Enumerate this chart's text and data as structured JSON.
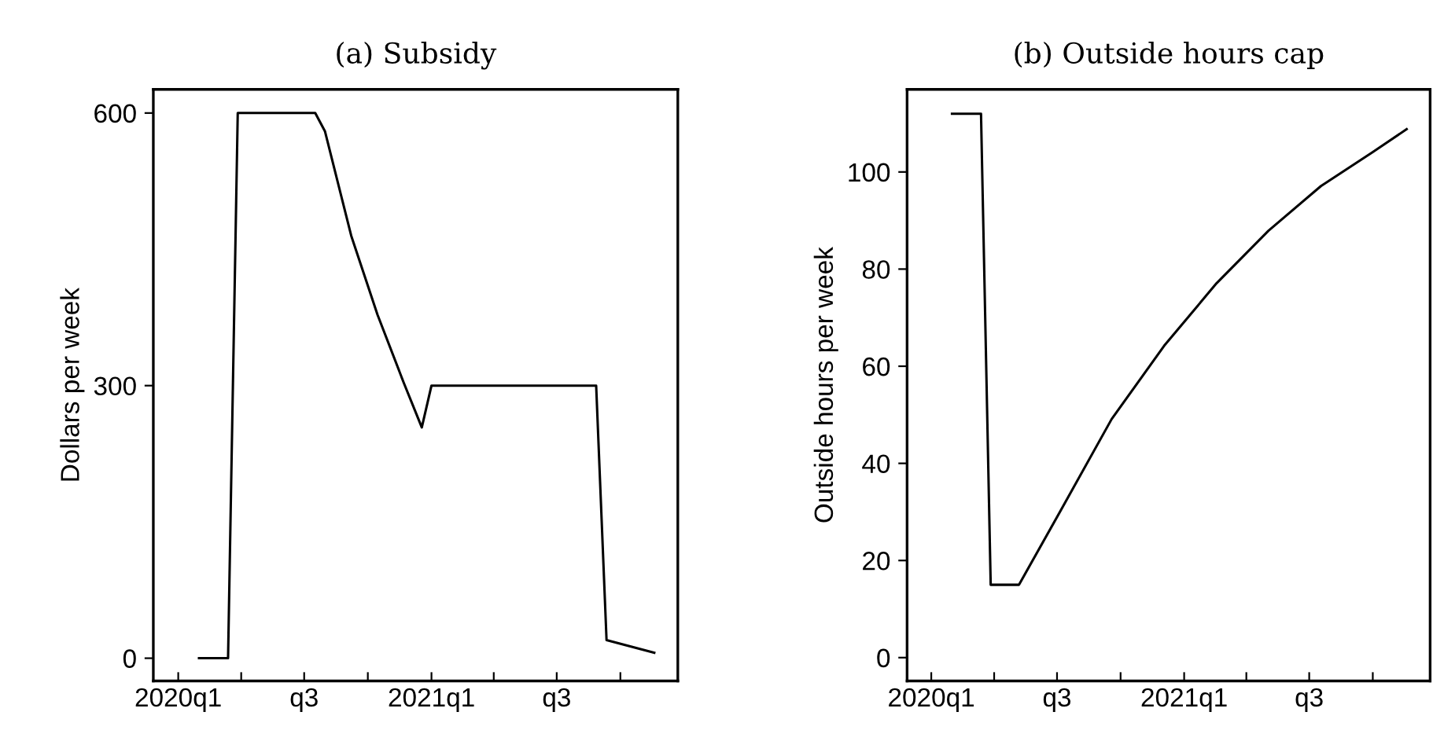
{
  "chart_data": [
    {
      "type": "line",
      "title": "(a) Subsidy",
      "ylabel": "Dollars per week",
      "xlim": [
        "2019-11-26",
        "2021-12-23"
      ],
      "ylim": [
        -25,
        626
      ],
      "xticks": [
        {
          "value": "2020-01-01",
          "label": "2020q1"
        },
        {
          "value": "2020-04-01",
          "label": null
        },
        {
          "value": "2020-07-01",
          "label": "q3"
        },
        {
          "value": "2020-10-01",
          "label": null
        },
        {
          "value": "2021-01-01",
          "label": "2021q1"
        },
        {
          "value": "2021-04-01",
          "label": null
        },
        {
          "value": "2021-07-01",
          "label": "q3"
        },
        {
          "value": "2021-10-01",
          "label": null
        }
      ],
      "yticks": [
        0,
        300,
        600
      ],
      "grid": false,
      "series": [
        {
          "color": "#000000",
          "x": [
            "2020-01-31",
            "2020-03-13",
            "2020-03-27",
            "2020-07-17",
            "2020-07-31",
            "2020-09-07",
            "2020-10-15",
            "2020-11-22",
            "2020-12-18",
            "2021-01-01",
            "2021-08-27",
            "2021-09-11",
            "2021-11-19"
          ],
          "values": [
            0,
            0,
            600,
            600,
            580,
            465,
            378,
            303,
            254,
            300,
            300,
            20,
            6
          ]
        }
      ]
    },
    {
      "type": "line",
      "title": "(b) Outside hours cap",
      "ylabel": "Outside hours per week",
      "xlim": [
        "2019-11-27",
        "2021-12-23"
      ],
      "ylim": [
        -4.8,
        117
      ],
      "xticks": [
        {
          "value": "2020-01-01",
          "label": "2020q1"
        },
        {
          "value": "2020-04-01",
          "label": null
        },
        {
          "value": "2020-07-01",
          "label": "q3"
        },
        {
          "value": "2020-10-01",
          "label": null
        },
        {
          "value": "2021-01-01",
          "label": "2021q1"
        },
        {
          "value": "2021-04-01",
          "label": null
        },
        {
          "value": "2021-07-01",
          "label": "q3"
        },
        {
          "value": "2021-10-01",
          "label": null
        }
      ],
      "yticks": [
        0,
        20,
        40,
        60,
        80,
        100
      ],
      "grid": false,
      "series": [
        {
          "color": "#000000",
          "x": [
            "2020-01-31",
            "2020-03-13",
            "2020-03-27",
            "2020-05-07",
            "2020-07-04",
            "2020-09-18",
            "2020-12-03",
            "2021-02-17",
            "2021-05-03",
            "2021-07-18",
            "2021-10-01",
            "2021-11-19"
          ],
          "values": [
            112,
            112,
            15,
            15,
            29.7,
            49.1,
            64.2,
            77.1,
            87.9,
            97.1,
            104.1,
            108.8
          ]
        }
      ]
    }
  ]
}
